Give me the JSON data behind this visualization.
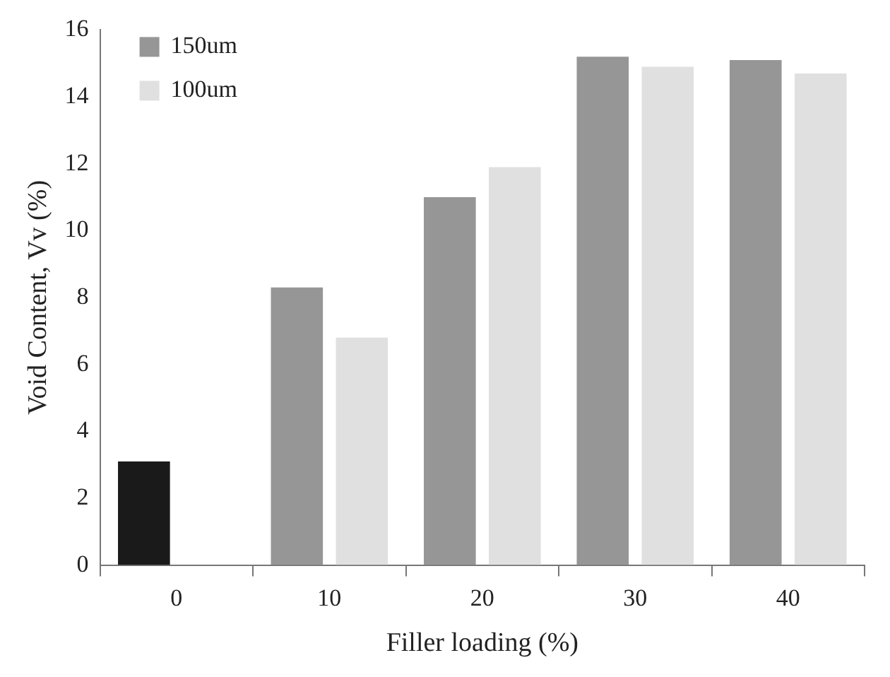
{
  "chart_data": {
    "type": "bar",
    "xlabel": "Filler loading (%)",
    "ylabel": "Void Content, Vv (%)",
    "categories": [
      "0",
      "10",
      "20",
      "30",
      "40"
    ],
    "series": [
      {
        "name": "150um",
        "color": "#969696",
        "colors": [
          "#1a1a1a",
          "#969696",
          "#969696",
          "#969696",
          "#969696"
        ],
        "values": [
          3.1,
          8.3,
          11.0,
          15.2,
          15.1
        ]
      },
      {
        "name": "100um",
        "color": "#e0e0e0",
        "values": [
          null,
          6.8,
          11.9,
          14.9,
          14.7
        ]
      }
    ],
    "ylim": [
      0,
      16
    ],
    "yticks": [
      0,
      2,
      4,
      6,
      8,
      10,
      12,
      14,
      16
    ],
    "grid": false,
    "legend": "top left"
  }
}
